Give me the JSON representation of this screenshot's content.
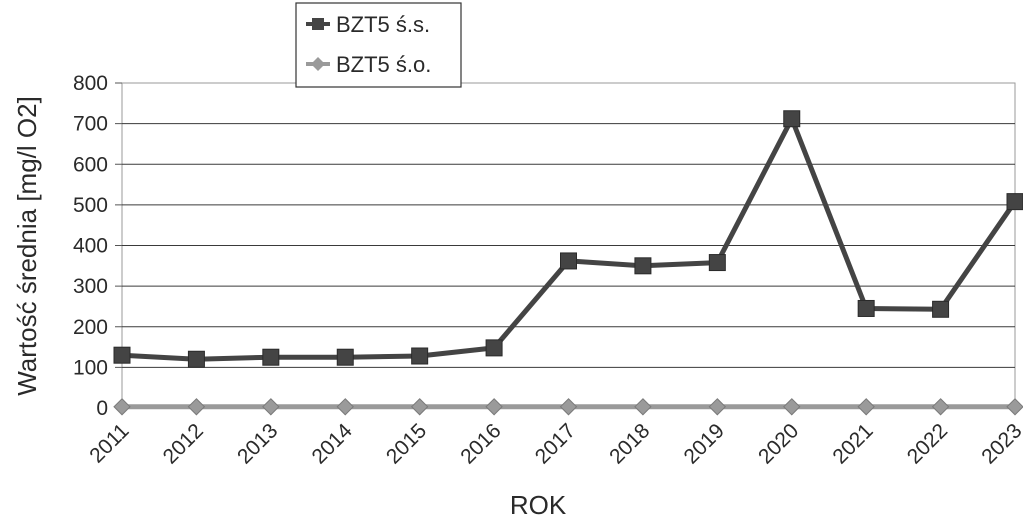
{
  "chart_data": {
    "type": "line",
    "x": [
      "2011",
      "2012",
      "2013",
      "2014",
      "2015",
      "2016",
      "2017",
      "2018",
      "2019",
      "2020",
      "2021",
      "2022",
      "2023"
    ],
    "series": [
      {
        "name": "BZT5 ś.s.",
        "values": [
          130,
          120,
          125,
          125,
          128,
          148,
          362,
          350,
          358,
          712,
          245,
          243,
          508
        ],
        "color": "#444444",
        "marker": "square"
      },
      {
        "name": "BZT5 ś.o.",
        "values": [
          3,
          3,
          3,
          3,
          3,
          3,
          3,
          3,
          3,
          3,
          3,
          3,
          3
        ],
        "color": "#9a9a9a",
        "marker": "diamond"
      }
    ],
    "xlabel": "ROK",
    "ylabel": "Wartość średnia [mg/l O2]",
    "ylim": [
      0,
      800
    ],
    "yticks": [
      0,
      100,
      200,
      300,
      400,
      500,
      600,
      700,
      800
    ],
    "grid": true,
    "legend": "top-left"
  }
}
